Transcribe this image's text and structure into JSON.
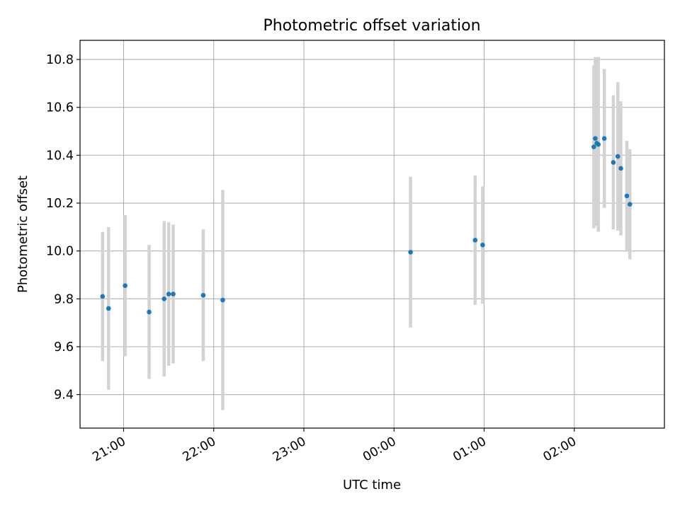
{
  "chart_data": {
    "type": "scatter",
    "title": "Photometric offset variation",
    "xlabel": "UTC time",
    "ylabel": "Photometric offset",
    "x_axis": {
      "scale": "time",
      "range_utc": [
        "20:31",
        "03:00"
      ],
      "ticks": [
        "21:00",
        "22:00",
        "23:00",
        "00:00",
        "01:00",
        "02:00"
      ],
      "tick_label_rotation_deg": 30
    },
    "y_axis": {
      "range": [
        9.26,
        10.88
      ],
      "ticks": [
        "9.4",
        "9.6",
        "9.8",
        "10.0",
        "10.2",
        "10.4",
        "10.6",
        "10.8"
      ]
    },
    "grid": true,
    "legend": "none",
    "colors": {
      "point": "#1f77b4",
      "errorbar": "#d3d3d3",
      "grid": "#b0b0b0"
    },
    "series": [
      {
        "points": [
          {
            "t": "20:46",
            "y": 9.81,
            "err": 0.27
          },
          {
            "t": "20:50",
            "y": 9.76,
            "err": 0.34
          },
          {
            "t": "21:01",
            "y": 9.855,
            "err": 0.295
          },
          {
            "t": "21:17",
            "y": 9.745,
            "err": 0.28
          },
          {
            "t": "21:27",
            "y": 9.8,
            "err": 0.325
          },
          {
            "t": "21:30",
            "y": 9.82,
            "err": 0.3
          },
          {
            "t": "21:33",
            "y": 9.82,
            "err": 0.29
          },
          {
            "t": "21:53",
            "y": 9.815,
            "err": 0.275
          },
          {
            "t": "22:06",
            "y": 9.795,
            "err": 0.46
          },
          {
            "t": "00:11",
            "y": 9.995,
            "err": 0.315
          },
          {
            "t": "00:54",
            "y": 10.045,
            "err": 0.27
          },
          {
            "t": "00:59",
            "y": 10.025,
            "err": 0.245
          },
          {
            "t": "02:13",
            "y": 10.435,
            "err": 0.34
          },
          {
            "t": "02:14",
            "y": 10.47,
            "err": 0.34
          },
          {
            "t": "02:15",
            "y": 10.45,
            "err": 0.345
          },
          {
            "t": "02:16",
            "y": 10.445,
            "err": 0.365
          },
          {
            "t": "02:20",
            "y": 10.47,
            "err": 0.29
          },
          {
            "t": "02:26",
            "y": 10.37,
            "err": 0.28
          },
          {
            "t": "02:29",
            "y": 10.395,
            "err": 0.31
          },
          {
            "t": "02:31",
            "y": 10.345,
            "err": 0.28
          },
          {
            "t": "02:35",
            "y": 10.23,
            "err": 0.23
          },
          {
            "t": "02:37",
            "y": 10.195,
            "err": 0.23
          }
        ]
      }
    ]
  }
}
